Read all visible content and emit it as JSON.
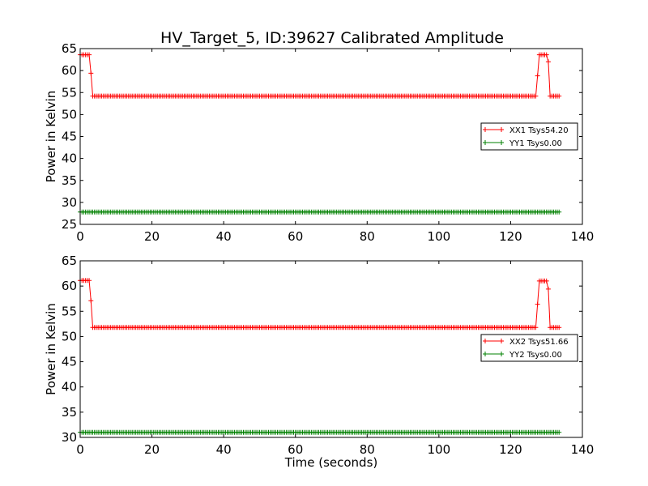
{
  "title": "HV_Target_5, ID:39627 Calibrated Amplitude",
  "chart_data": [
    {
      "type": "line",
      "xlim": [
        0,
        140
      ],
      "ylim": [
        25,
        65
      ],
      "xticks": [
        0,
        20,
        40,
        60,
        80,
        100,
        120,
        140
      ],
      "yticks": [
        25,
        30,
        35,
        40,
        45,
        50,
        55,
        60,
        65
      ],
      "xticklabels": [
        "0",
        "20",
        "40",
        "60",
        "80",
        "100",
        "120",
        "140"
      ],
      "yticklabels": [
        "25",
        "30",
        "35",
        "40",
        "45",
        "50",
        "55",
        "60",
        "65"
      ],
      "xlabel": "",
      "ylabel": "Power in Kelvin",
      "marker": "+",
      "grid": false,
      "legend_position": "center-right",
      "sample_interval_s": 0.5,
      "x_range": [
        0,
        133.5
      ],
      "series": [
        {
          "name": "XX1 Tsys54.20",
          "color": "#ff0000",
          "segments": [
            {
              "from": 0,
              "to": 2.5,
              "value": 63.6
            },
            {
              "from": 3,
              "to": 3,
              "value": 59.4
            },
            {
              "from": 3.5,
              "to": 127,
              "value": 54.2
            },
            {
              "from": 127.5,
              "to": 127.5,
              "value": 58.8
            },
            {
              "from": 128,
              "to": 130,
              "value": 63.6
            },
            {
              "from": 130.5,
              "to": 130.5,
              "value": 62.0
            },
            {
              "from": 131,
              "to": 133.5,
              "value": 54.2
            }
          ]
        },
        {
          "name": "YY1 Tsys0.00",
          "color": "#008000",
          "segments": [
            {
              "from": 0,
              "to": 133.5,
              "value": 27.8
            }
          ]
        }
      ]
    },
    {
      "type": "line",
      "xlim": [
        0,
        140
      ],
      "ylim": [
        30,
        65
      ],
      "xticks": [
        0,
        20,
        40,
        60,
        80,
        100,
        120,
        140
      ],
      "yticks": [
        30,
        35,
        40,
        45,
        50,
        55,
        60,
        65
      ],
      "xticklabels": [
        "0",
        "20",
        "40",
        "60",
        "80",
        "100",
        "120",
        "140"
      ],
      "yticklabels": [
        "30",
        "35",
        "40",
        "45",
        "50",
        "55",
        "60",
        "65"
      ],
      "xlabel": "Time (seconds)",
      "ylabel": "Power in Kelvin",
      "marker": "+",
      "grid": false,
      "legend_position": "center-right",
      "sample_interval_s": 0.5,
      "x_range": [
        0,
        133.5
      ],
      "series": [
        {
          "name": "XX2 Tsys51.66",
          "color": "#ff0000",
          "segments": [
            {
              "from": 0,
              "to": 2.5,
              "value": 61.1
            },
            {
              "from": 3,
              "to": 3,
              "value": 57.1
            },
            {
              "from": 3.5,
              "to": 127,
              "value": 51.8
            },
            {
              "from": 127.5,
              "to": 127.5,
              "value": 56.4
            },
            {
              "from": 128,
              "to": 130,
              "value": 61.0
            },
            {
              "from": 130.5,
              "to": 130.5,
              "value": 59.4
            },
            {
              "from": 131,
              "to": 133.5,
              "value": 51.8
            }
          ]
        },
        {
          "name": "YY2 Tsys0.00",
          "color": "#008000",
          "segments": [
            {
              "from": 0,
              "to": 133.5,
              "value": 31.0
            }
          ]
        }
      ]
    }
  ]
}
